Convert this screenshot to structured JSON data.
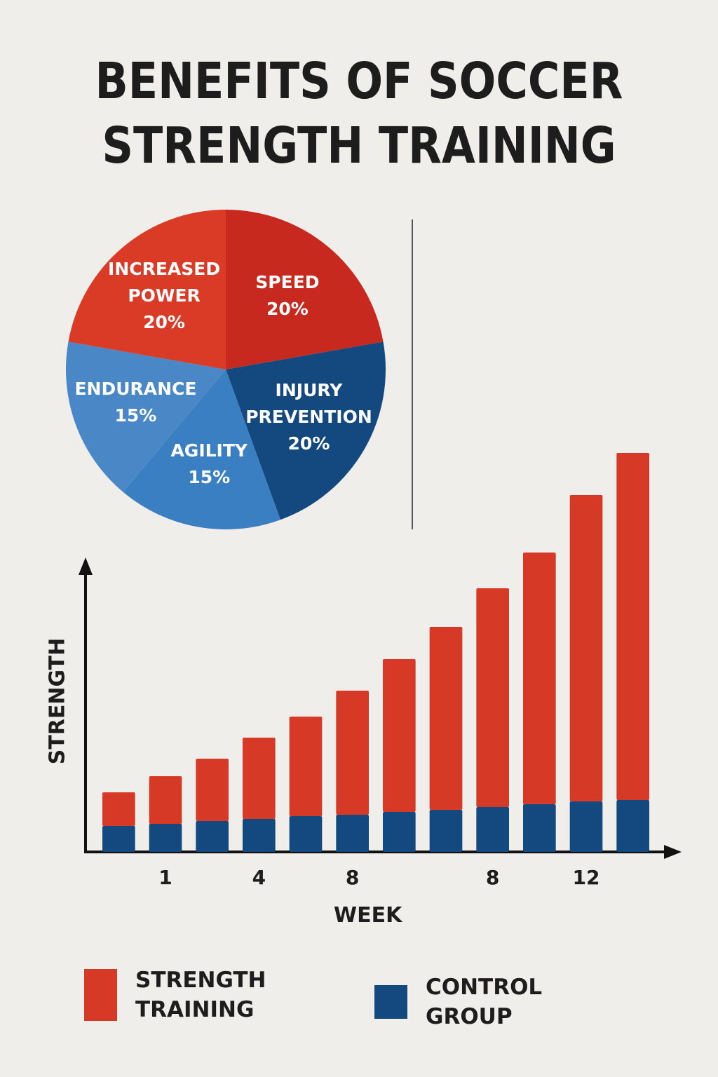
{
  "title": "BENEFITS OF SOCCER STRENGTH TRAINING",
  "chart_data": [
    {
      "type": "pie",
      "categories": [
        "SPEED",
        "INJURY PREVENTION",
        "AGILITY",
        "ENDURANCE",
        "INCREASED POWER"
      ],
      "values": [
        20,
        20,
        15,
        15,
        20
      ],
      "value_labels": [
        "20%",
        "20%",
        "15%",
        "15%",
        "20%"
      ],
      "colors": [
        "#c8291f",
        "#13497f",
        "#3a7fc1",
        "#4a87c6",
        "#d93b27"
      ]
    },
    {
      "type": "bar",
      "stacked": true,
      "x_label": "WEEK",
      "y_label": "STRENGTH",
      "categories": [
        null,
        "1",
        null,
        "4",
        null,
        "8",
        null,
        null,
        "8",
        null,
        "12",
        null
      ],
      "series": [
        {
          "name": "STRENGTH TRAINING",
          "color": "#d63a27",
          "values": [
            48,
            68,
            89,
            116,
            142,
            177,
            218,
            261,
            312,
            359,
            437,
            495
          ]
        },
        {
          "name": "CONTROL GROUP",
          "color": "#13497f",
          "values": [
            37,
            40,
            44,
            47,
            51,
            53,
            57,
            60,
            64,
            68,
            72,
            74
          ]
        }
      ],
      "ylim": [
        0,
        570
      ]
    }
  ]
}
